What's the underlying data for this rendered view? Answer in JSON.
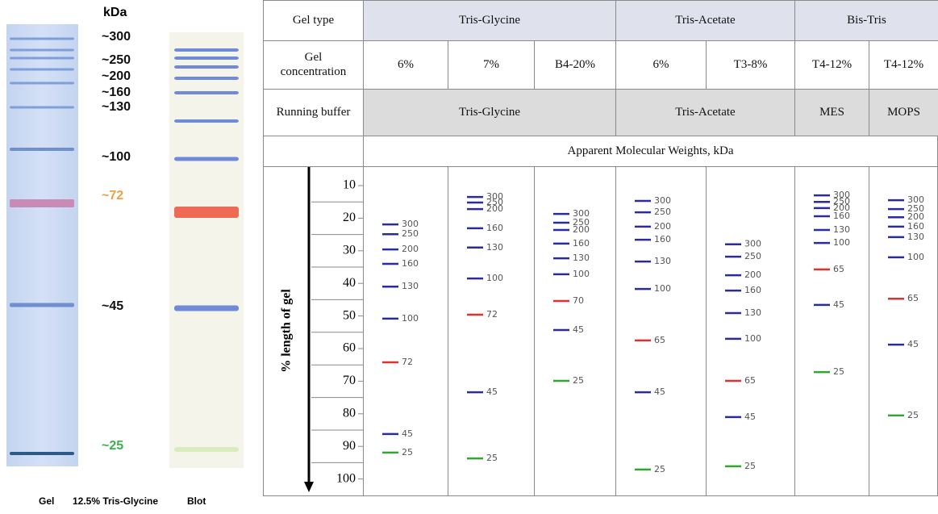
{
  "left_panel": {
    "unit": "kDa",
    "markers": [
      "~300",
      "~250",
      "~200",
      "~160",
      "~130",
      "~100",
      "~72",
      "~45",
      "~25"
    ],
    "caption": [
      "Gel",
      "12.5% Tris-Glycine",
      "Blot"
    ]
  },
  "table": {
    "row_headers": [
      "Gel type",
      "Gel concentration",
      "Running buffer"
    ],
    "gel_types": [
      "Tris-Glycine",
      "Tris-Acetate",
      "Bis-Tris"
    ],
    "concentrations": [
      "6%",
      "7%",
      "B4-20%",
      "6%",
      "T3-8%",
      "T4-12%",
      "T4-12%"
    ],
    "buffers": [
      "Tris-Glycine",
      "Tris-Acetate",
      "MES",
      "MOPS"
    ],
    "subheader": "Apparent Molecular Weights, kDa",
    "axis_label": "% length of gel",
    "axis_ticks": [
      10,
      20,
      30,
      40,
      50,
      60,
      70,
      80,
      90,
      100
    ],
    "lanes": [
      {
        "bands": [
          {
            "label": "300",
            "position": 21.9,
            "color": "#2b2ba0"
          },
          {
            "label": "250",
            "position": 24.9,
            "color": "#2b2ba0"
          },
          {
            "label": "200",
            "position": 29.6,
            "color": "#2b2ba0"
          },
          {
            "label": "160",
            "position": 34,
            "color": "#2b2ba0"
          },
          {
            "label": "130",
            "position": 41,
            "color": "#2b2ba0"
          },
          {
            "label": "100",
            "position": 50.8,
            "color": "#2b2ba0"
          },
          {
            "label": "72",
            "position": 64.2,
            "color": "#e03030"
          },
          {
            "label": "45",
            "position": 86.2,
            "color": "#2b2ba0"
          },
          {
            "label": "25",
            "position": 91.9,
            "color": "#2ea82e"
          }
        ]
      },
      {
        "bands": [
          {
            "label": "300",
            "position": 13.5,
            "color": "#2b2ba0"
          },
          {
            "label": "250",
            "position": 15.2,
            "color": "#2b2ba0"
          },
          {
            "label": "200",
            "position": 17.2,
            "color": "#2b2ba0"
          },
          {
            "label": "160",
            "position": 23.1,
            "color": "#2b2ba0"
          },
          {
            "label": "130",
            "position": 29,
            "color": "#2b2ba0"
          },
          {
            "label": "100",
            "position": 38.5,
            "color": "#2b2ba0"
          },
          {
            "label": "72",
            "position": 49.6,
            "color": "#e03030"
          },
          {
            "label": "45",
            "position": 73.4,
            "color": "#2b2ba0"
          },
          {
            "label": "25",
            "position": 93.7,
            "color": "#2ea82e"
          }
        ]
      },
      {
        "bands": [
          {
            "label": "300",
            "position": 18.7,
            "color": "#2b2ba0"
          },
          {
            "label": "250",
            "position": 21.4,
            "color": "#2b2ba0"
          },
          {
            "label": "200",
            "position": 23.6,
            "color": "#2b2ba0"
          },
          {
            "label": "160",
            "position": 27.8,
            "color": "#2b2ba0"
          },
          {
            "label": "130",
            "position": 32.3,
            "color": "#2b2ba0"
          },
          {
            "label": "100",
            "position": 37.2,
            "color": "#2b2ba0"
          },
          {
            "label": "70",
            "position": 45.4,
            "color": "#e03030"
          },
          {
            "label": "45",
            "position": 54.3,
            "color": "#2b2ba0"
          },
          {
            "label": "25",
            "position": 69.9,
            "color": "#2ea82e"
          }
        ]
      },
      {
        "bands": [
          {
            "label": "300",
            "position": 14.7,
            "color": "#2b2ba0"
          },
          {
            "label": "250",
            "position": 18.2,
            "color": "#2b2ba0"
          },
          {
            "label": "200",
            "position": 22.6,
            "color": "#2b2ba0"
          },
          {
            "label": "160",
            "position": 26.6,
            "color": "#2b2ba0"
          },
          {
            "label": "130",
            "position": 33.3,
            "color": "#2b2ba0"
          },
          {
            "label": "100",
            "position": 41.7,
            "color": "#2b2ba0"
          },
          {
            "label": "65",
            "position": 57.5,
            "color": "#e03030"
          },
          {
            "label": "45",
            "position": 73.4,
            "color": "#2b2ba0"
          },
          {
            "label": "25",
            "position": 97.1,
            "color": "#2ea82e"
          }
        ]
      },
      {
        "bands": [
          {
            "label": "300",
            "position": 28,
            "color": "#2b2ba0"
          },
          {
            "label": "250",
            "position": 31.8,
            "color": "#2b2ba0"
          },
          {
            "label": "200",
            "position": 37.5,
            "color": "#2b2ba0"
          },
          {
            "label": "160",
            "position": 42.2,
            "color": "#2b2ba0"
          },
          {
            "label": "130",
            "position": 49.1,
            "color": "#2b2ba0"
          },
          {
            "label": "100",
            "position": 57,
            "color": "#2b2ba0"
          },
          {
            "label": "65",
            "position": 69.9,
            "color": "#e03030"
          },
          {
            "label": "45",
            "position": 81,
            "color": "#2b2ba0"
          },
          {
            "label": "25",
            "position": 96.1,
            "color": "#2ea82e"
          }
        ]
      },
      {
        "bands": [
          {
            "label": "300",
            "position": 13,
            "color": "#2b2ba0"
          },
          {
            "label": "250",
            "position": 15,
            "color": "#2b2ba0"
          },
          {
            "label": "200",
            "position": 16.9,
            "color": "#2b2ba0"
          },
          {
            "label": "160",
            "position": 19.4,
            "color": "#2b2ba0"
          },
          {
            "label": "130",
            "position": 23.6,
            "color": "#2b2ba0"
          },
          {
            "label": "100",
            "position": 27.6,
            "color": "#2b2ba0"
          },
          {
            "label": "65",
            "position": 35.7,
            "color": "#e03030"
          },
          {
            "label": "45",
            "position": 46.6,
            "color": "#2b2ba0"
          },
          {
            "label": "25",
            "position": 67.2,
            "color": "#2ea82e"
          }
        ]
      },
      {
        "bands": [
          {
            "label": "300",
            "position": 14.5,
            "color": "#2b2ba0"
          },
          {
            "label": "250",
            "position": 17.2,
            "color": "#2b2ba0"
          },
          {
            "label": "200",
            "position": 19.7,
            "color": "#2b2ba0"
          },
          {
            "label": "160",
            "position": 22.6,
            "color": "#2b2ba0"
          },
          {
            "label": "130",
            "position": 25.8,
            "color": "#2b2ba0"
          },
          {
            "label": "100",
            "position": 32,
            "color": "#2b2ba0"
          },
          {
            "label": "65",
            "position": 44.7,
            "color": "#e03030"
          },
          {
            "label": "45",
            "position": 58.8,
            "color": "#2b2ba0"
          },
          {
            "label": "25",
            "position": 80.5,
            "color": "#2ea82e"
          }
        ]
      }
    ]
  }
}
